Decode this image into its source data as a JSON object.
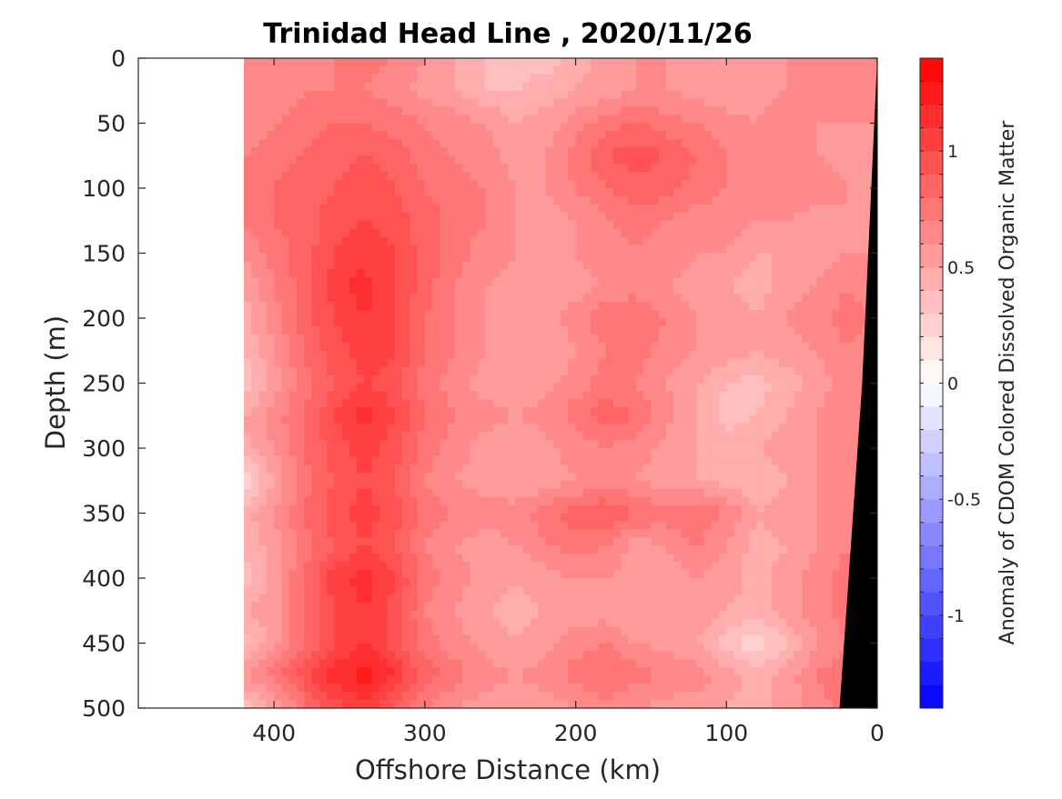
{
  "chart_data": {
    "type": "heatmap",
    "title": "Trinidad Head Line , 2020/11/26",
    "xlabel": "Offshore Distance (km)",
    "ylabel": "Depth (m)",
    "colorbar_label": "Anomaly of CDOM Colored Dissolved Organic Matter",
    "xlim": [
      490,
      0
    ],
    "ylim": [
      500,
      0
    ],
    "x_reversed": true,
    "y_reversed": true,
    "x_ticks": [
      400,
      300,
      200,
      100,
      0
    ],
    "y_ticks": [
      0,
      50,
      100,
      150,
      200,
      250,
      300,
      350,
      400,
      450,
      500
    ],
    "colorbar_range": [
      -1.4,
      1.4
    ],
    "colorbar_ticks": [
      1,
      0.5,
      0,
      -0.5,
      -1
    ],
    "colorbar_levels": 28,
    "colors": {
      "positive": "#ff0000",
      "zero": "#ffffff",
      "negative": "#0000ff",
      "bathymetry": "#000000"
    },
    "data_extent_km": [
      0,
      420
    ],
    "depth_rows": [
      0,
      25,
      50,
      75,
      100,
      125,
      150,
      175,
      200,
      225,
      250,
      275,
      300,
      325,
      350,
      375,
      400,
      425,
      450,
      475,
      500
    ],
    "distance_cols": [
      420,
      400,
      380,
      360,
      340,
      320,
      300,
      280,
      260,
      240,
      220,
      200,
      180,
      160,
      140,
      120,
      100,
      80,
      60,
      40,
      20,
      0
    ],
    "values": [
      [
        0.6,
        0.65,
        0.7,
        0.7,
        0.75,
        0.7,
        0.6,
        0.5,
        0.4,
        0.35,
        0.35,
        0.45,
        0.55,
        0.6,
        0.6,
        0.55,
        0.55,
        0.6,
        0.6,
        0.65,
        0.7,
        0.7
      ],
      [
        0.6,
        0.65,
        0.7,
        0.7,
        0.7,
        0.65,
        0.55,
        0.5,
        0.4,
        0.4,
        0.45,
        0.5,
        0.55,
        0.6,
        0.6,
        0.55,
        0.5,
        0.55,
        0.6,
        0.65,
        0.65,
        0.7
      ],
      [
        0.65,
        0.7,
        0.75,
        0.8,
        0.8,
        0.75,
        0.7,
        0.65,
        0.6,
        0.5,
        0.55,
        0.65,
        0.75,
        0.8,
        0.75,
        0.7,
        0.65,
        0.6,
        0.65,
        0.6,
        0.6,
        0.6
      ],
      [
        0.7,
        0.75,
        0.8,
        0.85,
        0.9,
        0.85,
        0.75,
        0.7,
        0.65,
        0.55,
        0.6,
        0.75,
        0.9,
        0.95,
        0.9,
        0.8,
        0.7,
        0.65,
        0.7,
        0.6,
        0.55,
        0.5
      ],
      [
        0.75,
        0.8,
        0.85,
        0.9,
        0.95,
        0.9,
        0.8,
        0.75,
        0.7,
        0.6,
        0.6,
        0.7,
        0.8,
        0.85,
        0.85,
        0.75,
        0.7,
        0.65,
        0.7,
        0.65,
        0.6,
        0.5
      ],
      [
        0.7,
        0.8,
        0.85,
        0.95,
        1.0,
        0.95,
        0.85,
        0.75,
        0.7,
        0.6,
        0.55,
        0.6,
        0.7,
        0.75,
        0.7,
        0.65,
        0.65,
        0.6,
        0.6,
        0.55,
        0.6,
        0.55
      ],
      [
        0.6,
        0.75,
        0.85,
        1.0,
        1.05,
        1.0,
        0.85,
        0.75,
        0.65,
        0.6,
        0.55,
        0.6,
        0.65,
        0.7,
        0.65,
        0.6,
        0.6,
        0.5,
        0.5,
        0.55,
        0.6,
        0.6
      ],
      [
        0.5,
        0.7,
        0.85,
        1.05,
        1.15,
        1.0,
        0.85,
        0.7,
        0.6,
        0.55,
        0.5,
        0.55,
        0.6,
        0.65,
        0.6,
        0.55,
        0.5,
        0.45,
        0.55,
        0.6,
        0.7,
        0.65
      ],
      [
        0.45,
        0.65,
        0.85,
        1.0,
        1.1,
        1.0,
        0.8,
        0.7,
        0.6,
        0.55,
        0.55,
        0.65,
        0.8,
        0.8,
        0.7,
        0.6,
        0.55,
        0.5,
        0.6,
        0.65,
        0.75,
        0.7
      ],
      [
        0.4,
        0.6,
        0.8,
        0.95,
        1.05,
        1.0,
        0.8,
        0.7,
        0.6,
        0.5,
        0.5,
        0.6,
        0.7,
        0.75,
        0.65,
        0.6,
        0.55,
        0.5,
        0.55,
        0.6,
        0.7,
        0.65
      ],
      [
        0.3,
        0.55,
        0.75,
        0.9,
        1.0,
        0.95,
        0.75,
        0.65,
        0.55,
        0.5,
        0.55,
        0.65,
        0.75,
        0.7,
        0.6,
        0.5,
        0.4,
        0.35,
        0.45,
        0.55,
        0.65,
        0.6
      ],
      [
        0.5,
        0.65,
        0.8,
        1.0,
        1.15,
        1.0,
        0.8,
        0.7,
        0.65,
        0.6,
        0.65,
        0.75,
        0.85,
        0.8,
        0.65,
        0.5,
        0.35,
        0.4,
        0.5,
        0.6,
        0.7,
        0.65
      ],
      [
        0.45,
        0.6,
        0.8,
        0.95,
        1.05,
        0.95,
        0.75,
        0.65,
        0.55,
        0.5,
        0.55,
        0.65,
        0.7,
        0.65,
        0.55,
        0.5,
        0.45,
        0.5,
        0.55,
        0.6,
        0.7,
        0.65
      ],
      [
        0.2,
        0.5,
        0.75,
        0.9,
        1.0,
        0.9,
        0.7,
        0.6,
        0.55,
        0.5,
        0.55,
        0.6,
        0.65,
        0.6,
        0.55,
        0.5,
        0.45,
        0.4,
        0.5,
        0.6,
        0.7,
        0.65
      ],
      [
        0.45,
        0.6,
        0.8,
        0.95,
        1.05,
        0.95,
        0.75,
        0.7,
        0.65,
        0.65,
        0.75,
        0.85,
        0.9,
        0.8,
        0.75,
        0.8,
        0.7,
        0.5,
        0.55,
        0.6,
        0.7,
        0.65
      ],
      [
        0.4,
        0.55,
        0.75,
        0.9,
        1.0,
        0.9,
        0.7,
        0.6,
        0.55,
        0.6,
        0.7,
        0.75,
        0.7,
        0.55,
        0.6,
        0.7,
        0.6,
        0.45,
        0.5,
        0.6,
        0.7,
        0.65
      ],
      [
        0.35,
        0.55,
        0.8,
        1.05,
        1.15,
        1.0,
        0.75,
        0.65,
        0.55,
        0.5,
        0.55,
        0.6,
        0.6,
        0.55,
        0.55,
        0.6,
        0.55,
        0.45,
        0.55,
        0.65,
        0.75,
        0.7
      ],
      [
        0.5,
        0.55,
        0.8,
        1.0,
        1.1,
        0.95,
        0.7,
        0.6,
        0.5,
        0.45,
        0.5,
        0.55,
        0.55,
        0.5,
        0.55,
        0.6,
        0.5,
        0.45,
        0.55,
        0.65,
        0.75,
        0.7
      ],
      [
        0.35,
        0.55,
        0.8,
        1.0,
        1.1,
        0.95,
        0.75,
        0.65,
        0.55,
        0.5,
        0.55,
        0.65,
        0.7,
        0.6,
        0.55,
        0.5,
        0.35,
        0.2,
        0.4,
        0.6,
        0.7,
        0.65
      ],
      [
        0.6,
        0.75,
        0.95,
        1.15,
        1.25,
        1.1,
        0.85,
        0.75,
        0.65,
        0.6,
        0.65,
        0.75,
        0.8,
        0.75,
        0.7,
        0.65,
        0.55,
        0.45,
        0.55,
        0.7,
        0.8,
        0.75
      ],
      [
        0.3,
        0.5,
        0.75,
        0.95,
        1.05,
        0.9,
        0.7,
        0.6,
        0.55,
        0.5,
        0.55,
        0.6,
        0.65,
        0.6,
        0.55,
        0.55,
        0.5,
        0.45,
        0.55,
        0.65,
        0.75,
        0.7
      ]
    ],
    "bathymetry": [
      [
        0,
        0
      ],
      [
        4,
        100
      ],
      [
        10,
        250
      ],
      [
        25,
        500
      ]
    ]
  }
}
